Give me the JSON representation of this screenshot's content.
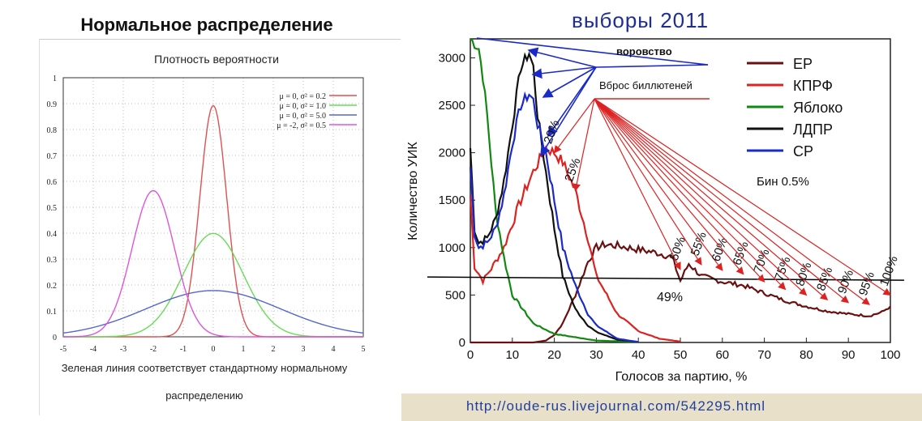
{
  "left_title": "Нормальное распределение",
  "right_title": "выборы 2011",
  "url": "http://oude-rus.livejournal.com/542295.html",
  "chart_data": [
    {
      "type": "line",
      "title": "Плотность вероятности",
      "caption_line1": "Зеленая линия соответствует стандартному нормальному",
      "caption_line2": "распределению",
      "xlim": [
        -5,
        5
      ],
      "ylim": [
        0,
        1
      ],
      "xticks": [
        "-5",
        "-4",
        "-3",
        "-2",
        "-1",
        "0",
        "1",
        "2",
        "3",
        "4",
        "5"
      ],
      "yticks": [
        "0",
        "0.1",
        "0.2",
        "0.3",
        "0.4",
        "0.5",
        "0.6",
        "0.7",
        "0.8",
        "0.9",
        "1"
      ],
      "legend_position": "top-right",
      "series": [
        {
          "name": "μ = 0, σ² = 0.2",
          "mu": 0,
          "var": 0.2,
          "color": "#e05050"
        },
        {
          "name": "μ = 0, σ² = 1.0",
          "mu": 0,
          "var": 1.0,
          "color": "#66dd55"
        },
        {
          "name": "μ = 0, σ² = 5.0",
          "mu": 0,
          "var": 5.0,
          "color": "#5566cc"
        },
        {
          "name": "μ = -2, σ² = 0.5",
          "mu": -2,
          "var": 0.5,
          "color": "#dd55dd"
        }
      ]
    },
    {
      "type": "line",
      "xlabel": "Голосов за партию, %",
      "ylabel": "Количество УИК",
      "xlim": [
        0,
        100
      ],
      "ylim": [
        0,
        3200
      ],
      "xticks": [
        "0",
        "10",
        "20",
        "30",
        "40",
        "50",
        "60",
        "70",
        "80",
        "90",
        "100"
      ],
      "yticks": [
        "0",
        "500",
        "1000",
        "1500",
        "2000",
        "2500",
        "3000"
      ],
      "legend_position": "top-right",
      "bin_label": "Бин 0.5%",
      "threshold_y": 690,
      "threshold_label": "49%",
      "annotation_theft": "воровство",
      "annotation_stuffing": "Вброс биллютеней",
      "peak_labels": [
        "20%",
        "25%",
        "50%",
        "55%",
        "60%",
        "65%",
        "70%",
        "75%",
        "80%",
        "85%",
        "90%",
        "95%",
        "100%"
      ],
      "peak_x": [
        20,
        25,
        50,
        55,
        60,
        65,
        70,
        75,
        80,
        85,
        90,
        95,
        100
      ],
      "series": [
        {
          "name": "ЕР",
          "color": "#6b1010",
          "x": [
            0,
            5,
            10,
            15,
            18,
            20,
            22,
            25,
            28,
            30,
            32,
            35,
            40,
            45,
            48,
            50,
            52,
            55,
            60,
            65,
            70,
            75,
            80,
            85,
            90,
            95,
            98,
            100
          ],
          "y": [
            0,
            0,
            0,
            0,
            20,
            80,
            200,
            500,
            850,
            1000,
            1030,
            1020,
            980,
            940,
            900,
            650,
            830,
            700,
            640,
            600,
            520,
            440,
            380,
            330,
            300,
            280,
            320,
            380
          ]
        },
        {
          "name": "КПРФ",
          "color": "#dd2222",
          "x": [
            0,
            1,
            3,
            5,
            8,
            10,
            12,
            15,
            18,
            20,
            22,
            25,
            28,
            30,
            35,
            40,
            45,
            50
          ],
          "y": [
            1550,
            800,
            650,
            780,
            1000,
            1250,
            1500,
            1800,
            2050,
            2000,
            1900,
            1600,
            1100,
            700,
            300,
            120,
            40,
            10
          ]
        },
        {
          "name": "Яблоко",
          "color": "#118811",
          "x": [
            0,
            2,
            3,
            4,
            5,
            6,
            8,
            10,
            15,
            20,
            30,
            40
          ],
          "y": [
            3200,
            3100,
            2800,
            2400,
            1900,
            1400,
            900,
            500,
            200,
            90,
            20,
            5
          ]
        },
        {
          "name": "ЛДПР",
          "color": "#111111",
          "x": [
            0,
            1,
            2,
            4,
            6,
            8,
            10,
            12,
            14,
            15,
            16,
            18,
            20,
            22,
            25,
            28,
            30,
            35,
            40
          ],
          "y": [
            2050,
            1200,
            1050,
            1100,
            1300,
            1700,
            2300,
            2900,
            3050,
            2900,
            2400,
            1800,
            1200,
            700,
            350,
            180,
            110,
            30,
            5
          ]
        },
        {
          "name": "СР",
          "color": "#1a2ac8",
          "x": [
            0,
            1,
            2,
            4,
            6,
            8,
            10,
            12,
            14,
            15,
            16,
            18,
            20,
            22,
            25,
            28,
            30,
            35,
            40
          ],
          "y": [
            1850,
            1150,
            1000,
            1050,
            1200,
            1550,
            2100,
            2500,
            2620,
            2550,
            2300,
            2000,
            1500,
            1000,
            600,
            300,
            180,
            40,
            5
          ]
        }
      ]
    }
  ]
}
